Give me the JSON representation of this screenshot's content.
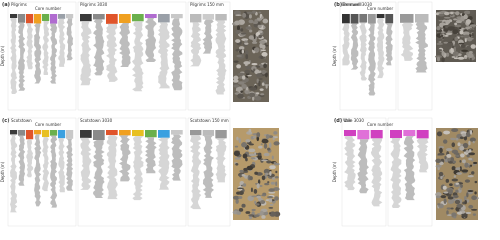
{
  "panels": [
    {
      "letter": "(a)",
      "name": "Pilgrims",
      "legend": "Core number",
      "axis_label": "Depth (m)",
      "subpanels": [
        "Pilgrims 3030",
        "Pilgrims 150 mm"
      ]
    },
    {
      "letter": "(b)",
      "name": "Bremwell",
      "legend": "Core number",
      "axis_label": "Depth (m)",
      "subpanels": [
        "Bremwell 3030"
      ]
    },
    {
      "letter": "(c)",
      "name": "Scotstown",
      "legend": "Core number",
      "axis_label": "Depth (m)",
      "subpanels": [
        "Scotstown 3030",
        "Scotstown 150 mm"
      ]
    },
    {
      "letter": "(d)",
      "name": "Vale",
      "legend": "Core number",
      "axis_label": "Depth (m)",
      "subpanels": [
        "Vale 3030"
      ]
    }
  ]
}
